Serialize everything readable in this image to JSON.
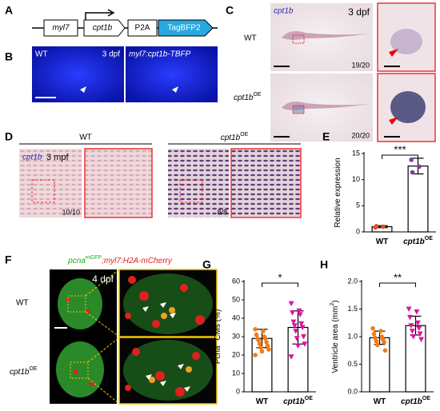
{
  "panels": {
    "A": {
      "label": "A",
      "genes": [
        "myl7",
        "cpt1b",
        "P2A",
        "TagBFP2"
      ]
    },
    "B": {
      "label": "B",
      "left": "WT",
      "stage": "3 dpf",
      "right": "myl7:cpt1b-TBFP"
    },
    "C": {
      "label": "C",
      "probe": "cpt1b",
      "stage": "3 dpf",
      "rows": [
        {
          "name": "WT",
          "count": "19/20"
        },
        {
          "name": "cpt1b",
          "sup": "OE",
          "count": "20/20"
        }
      ]
    },
    "D": {
      "label": "D",
      "groups": [
        {
          "name": "WT"
        },
        {
          "name": "cpt1b",
          "sup": "OE"
        }
      ],
      "probe": "cpt1b",
      "stage": "3 mpf",
      "counts": [
        "10/10",
        "8/8"
      ]
    },
    "F": {
      "label": "F",
      "title": [
        {
          "t": "pcna"
        },
        {
          "sup": "mGFP"
        },
        {
          "t": ";myl7:H2A-mCherry"
        }
      ],
      "stage": "4 dpf",
      "rows": [
        {
          "name": "WT"
        },
        {
          "name": "cpt1b",
          "sup": "OE"
        }
      ]
    }
  },
  "chart_data": [
    {
      "type": "bar",
      "panel": "E",
      "ylabel": [
        {
          "t": "Relative expression"
        }
      ],
      "categories": [
        {
          "label": "WT"
        },
        {
          "label": "cpt1b",
          "sup": "OE"
        }
      ],
      "values": [
        1.0,
        12.6
      ],
      "errors": [
        0.2,
        1.5
      ],
      "points": [
        [
          0.85,
          1.0,
          1.1
        ],
        [
          13.8,
          12.5,
          11.4
        ]
      ],
      "point_colors": [
        "#e8501e",
        "#7b3fa0"
      ],
      "point_markers": [
        "circle",
        "circle"
      ],
      "ylim": [
        0,
        15
      ],
      "yticks": [
        0,
        5,
        10,
        15
      ],
      "significance": "***"
    },
    {
      "type": "bar",
      "panel": "G",
      "ylabel": [
        {
          "t": "Pcna"
        },
        {
          "sup": "+"
        },
        {
          "t": " CMs (%)"
        }
      ],
      "categories": [
        {
          "label": "WT"
        },
        {
          "label": "cpt1b",
          "sup": "OE"
        }
      ],
      "values": [
        29,
        35
      ],
      "errors": [
        5,
        9
      ],
      "points": [
        [
          34,
          33,
          31,
          30,
          29,
          29,
          28,
          27,
          26,
          25,
          24,
          23,
          22,
          20
        ],
        [
          48,
          44,
          43,
          42,
          38,
          37,
          36,
          35,
          33,
          30,
          29,
          26,
          25,
          19
        ]
      ],
      "point_colors": [
        "#f07d1a",
        "#e0119f"
      ],
      "point_markers": [
        "circle",
        "triangle-down"
      ],
      "ylim": [
        0,
        60
      ],
      "yticks": [
        0,
        10,
        20,
        30,
        40,
        50,
        60
      ],
      "significance": "*"
    },
    {
      "type": "bar",
      "panel": "H",
      "ylabel": [
        {
          "t": "Ventricle area (mm"
        },
        {
          "sup": "2"
        },
        {
          "t": ")"
        }
      ],
      "categories": [
        {
          "label": "WT"
        },
        {
          "label": "cpt1b",
          "sup": "OE"
        }
      ],
      "values": [
        0.98,
        1.2
      ],
      "errors": [
        0.12,
        0.17
      ],
      "points": [
        [
          1.15,
          1.1,
          1.05,
          1.0,
          0.98,
          0.95,
          0.92,
          0.9,
          0.85,
          0.75
        ],
        [
          1.5,
          1.45,
          1.35,
          1.25,
          1.2,
          1.15,
          1.1,
          1.05,
          1.0,
          0.95
        ]
      ],
      "point_colors": [
        "#f07d1a",
        "#e0119f"
      ],
      "point_markers": [
        "circle",
        "triangle-down"
      ],
      "ylim": [
        0,
        2.0
      ],
      "yticks": [
        {
          "value": 0,
          "label": "0.0"
        },
        0.5,
        {
          "value": 1,
          "label": "1.0"
        },
        1.5,
        {
          "value": 2,
          "label": "2.0"
        }
      ],
      "significance": "**"
    }
  ]
}
